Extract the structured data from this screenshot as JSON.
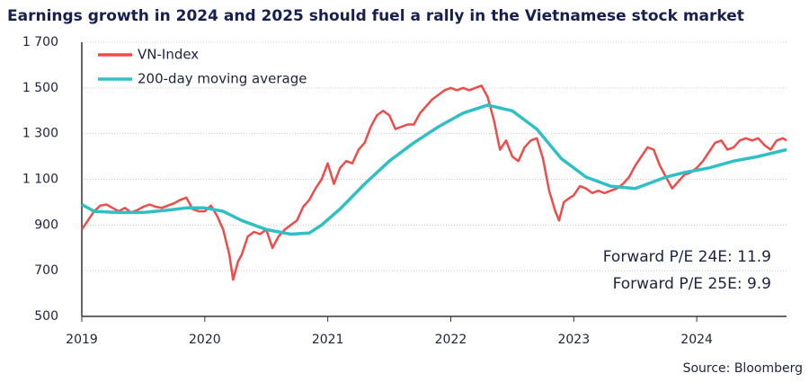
{
  "chart_data": {
    "type": "line",
    "title": "Earnings growth in 2024 and 2025 should fuel a rally in the Vietnamese stock market",
    "xlim": [
      2019,
      2024.73
    ],
    "xticks": [
      2019,
      2020,
      2021,
      2022,
      2023,
      2024
    ],
    "ylim": [
      500,
      1700
    ],
    "yticks": [
      500,
      700,
      900,
      {
        "value": 1100,
        "label": "1 100"
      },
      {
        "value": 1300,
        "label": "1 300"
      },
      {
        "value": 1500,
        "label": "1 500"
      },
      {
        "value": 1700,
        "label": "1 700"
      }
    ],
    "grid": true,
    "legend": "upper-left",
    "annotations": [
      "Forward P/E 24E: 11.9",
      "Forward P/E 25E: 9.9"
    ],
    "source": "Source: Bloomberg",
    "series": [
      {
        "name": "VN-Index",
        "color": "#ee4b4b",
        "x": [
          2019.0,
          2019.05,
          2019.1,
          2019.15,
          2019.2,
          2019.25,
          2019.3,
          2019.35,
          2019.4,
          2019.45,
          2019.5,
          2019.55,
          2019.6,
          2019.65,
          2019.7,
          2019.75,
          2019.8,
          2019.85,
          2019.9,
          2019.95,
          2020.0,
          2020.05,
          2020.1,
          2020.15,
          2020.2,
          2020.23,
          2020.27,
          2020.3,
          2020.35,
          2020.4,
          2020.45,
          2020.5,
          2020.55,
          2020.6,
          2020.65,
          2020.7,
          2020.75,
          2020.8,
          2020.85,
          2020.9,
          2020.95,
          2021.0,
          2021.05,
          2021.1,
          2021.15,
          2021.2,
          2021.25,
          2021.3,
          2021.35,
          2021.4,
          2021.45,
          2021.5,
          2021.55,
          2021.6,
          2021.65,
          2021.7,
          2021.75,
          2021.8,
          2021.85,
          2021.9,
          2021.95,
          2022.0,
          2022.05,
          2022.1,
          2022.15,
          2022.2,
          2022.25,
          2022.3,
          2022.35,
          2022.4,
          2022.45,
          2022.5,
          2022.55,
          2022.6,
          2022.65,
          2022.7,
          2022.75,
          2022.8,
          2022.85,
          2022.88,
          2022.92,
          2022.97,
          2023.0,
          2023.05,
          2023.1,
          2023.15,
          2023.2,
          2023.25,
          2023.3,
          2023.35,
          2023.4,
          2023.45,
          2023.5,
          2023.55,
          2023.6,
          2023.65,
          2023.7,
          2023.75,
          2023.8,
          2023.85,
          2023.9,
          2023.95,
          2024.0,
          2024.05,
          2024.1,
          2024.15,
          2024.2,
          2024.25,
          2024.3,
          2024.35,
          2024.4,
          2024.45,
          2024.5,
          2024.55,
          2024.6,
          2024.65,
          2024.7,
          2024.73
        ],
        "values": [
          880,
          920,
          960,
          985,
          990,
          975,
          960,
          975,
          955,
          965,
          980,
          990,
          980,
          975,
          985,
          995,
          1010,
          1020,
          970,
          960,
          960,
          985,
          940,
          880,
          770,
          660,
          740,
          770,
          850,
          870,
          860,
          880,
          800,
          850,
          880,
          900,
          920,
          980,
          1010,
          1060,
          1100,
          1170,
          1080,
          1150,
          1180,
          1170,
          1230,
          1260,
          1330,
          1380,
          1400,
          1380,
          1320,
          1330,
          1340,
          1340,
          1390,
          1420,
          1450,
          1470,
          1490,
          1500,
          1490,
          1500,
          1490,
          1500,
          1510,
          1460,
          1360,
          1230,
          1270,
          1200,
          1180,
          1240,
          1270,
          1280,
          1190,
          1050,
          960,
          920,
          1000,
          1020,
          1030,
          1070,
          1060,
          1040,
          1050,
          1040,
          1050,
          1060,
          1080,
          1110,
          1160,
          1200,
          1240,
          1230,
          1160,
          1110,
          1060,
          1090,
          1120,
          1130,
          1150,
          1180,
          1220,
          1260,
          1270,
          1230,
          1240,
          1270,
          1280,
          1270,
          1280,
          1250,
          1230,
          1270,
          1280,
          1270
        ]
      },
      {
        "name": "200-day moving average",
        "color": "#2fbfc4",
        "x": [
          2019.0,
          2019.1,
          2019.3,
          2019.5,
          2019.7,
          2019.85,
          2020.0,
          2020.15,
          2020.3,
          2020.5,
          2020.7,
          2020.85,
          2020.95,
          2021.1,
          2021.3,
          2021.5,
          2021.7,
          2021.9,
          2022.1,
          2022.3,
          2022.5,
          2022.7,
          2022.9,
          2023.1,
          2023.3,
          2023.5,
          2023.6,
          2023.75,
          2023.9,
          2024.1,
          2024.3,
          2024.5,
          2024.73
        ],
        "values": [
          990,
          960,
          955,
          955,
          965,
          975,
          975,
          960,
          920,
          880,
          860,
          865,
          900,
          970,
          1080,
          1180,
          1260,
          1330,
          1390,
          1425,
          1400,
          1320,
          1190,
          1110,
          1070,
          1060,
          1080,
          1110,
          1130,
          1150,
          1180,
          1200,
          1230
        ]
      }
    ]
  }
}
